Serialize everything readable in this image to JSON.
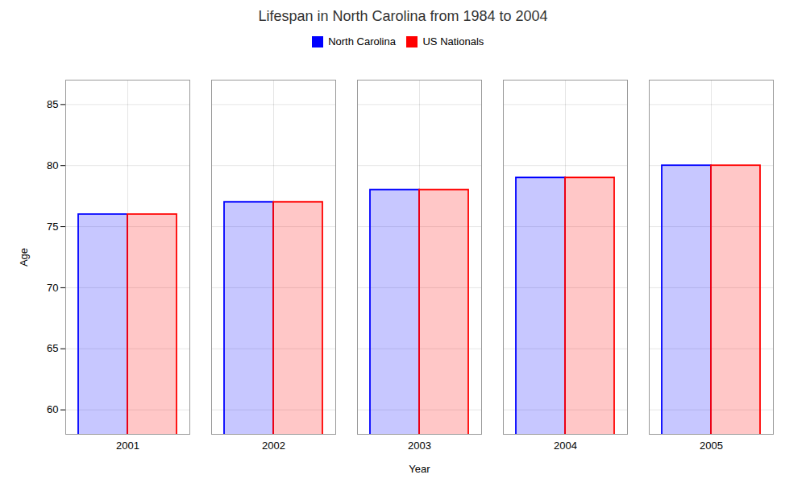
{
  "chart_data": {
    "type": "bar",
    "title": "Lifespan in North Carolina from 1984 to 2004",
    "xlabel": "Year",
    "ylabel": "Age",
    "categories": [
      "2001",
      "2002",
      "2003",
      "2004",
      "2005"
    ],
    "series": [
      {
        "name": "North Carolina",
        "color": "#0000ff",
        "values": [
          76,
          77,
          78,
          79,
          80
        ]
      },
      {
        "name": "US Nationals",
        "color": "#ff0000",
        "values": [
          76,
          77,
          78,
          79,
          80
        ]
      }
    ],
    "ylim": [
      58,
      87
    ],
    "yticks": [
      60,
      65,
      70,
      75,
      80,
      85
    ],
    "grid": true,
    "legend": "upper center"
  }
}
